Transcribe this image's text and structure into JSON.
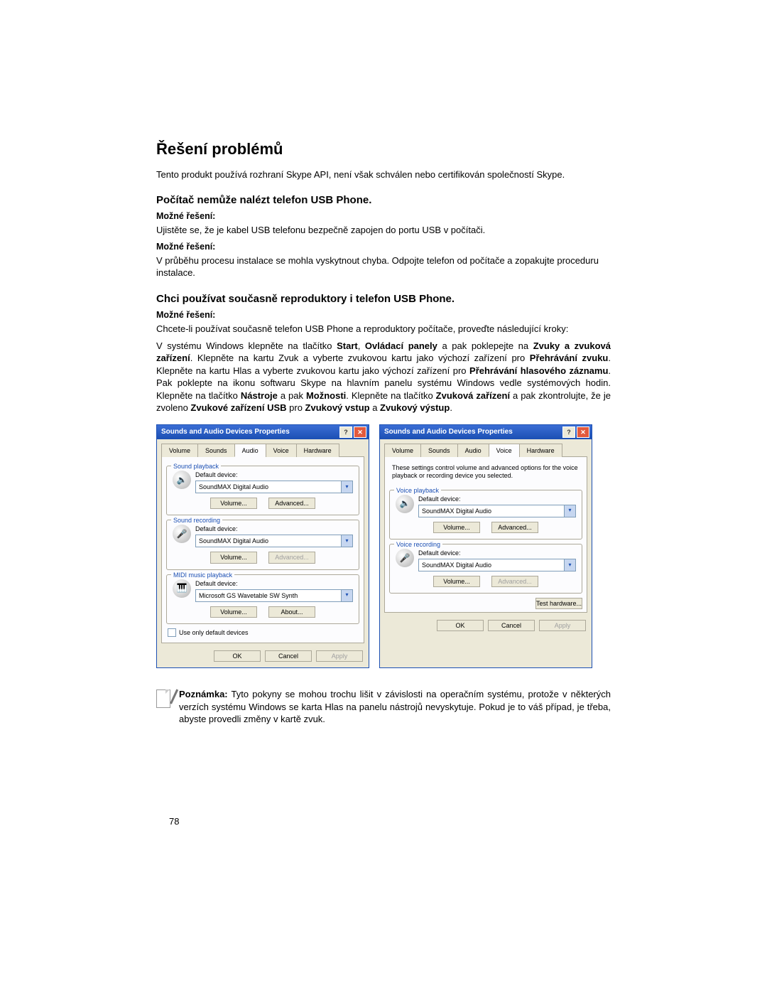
{
  "heading": "Řešení problémů",
  "intro": "Tento produkt používá rozhraní Skype API, není však schválen nebo certifikován společností Skype.",
  "section1": {
    "title": "Počítač nemůže nalézt telefon USB Phone.",
    "label1": "Možné řešení:",
    "text1": "Ujistěte se, že je kabel USB telefonu bezpečně zapojen do portu USB v počítači.",
    "label2": "Možné řešení:",
    "text2": "V průběhu procesu instalace se mohla vyskytnout chyba. Odpojte telefon od počítače a zopakujte proceduru instalace."
  },
  "section2": {
    "title": "Chci používat současně reproduktory i telefon USB Phone.",
    "label": "Možné řešení:",
    "text_a": "Chcete-li používat současně telefon USB Phone a reproduktory počítače, proveďte následující kroky:",
    "text_b1": "V systému Windows klepněte na tlačítko ",
    "b_start": "Start",
    "comma1": ", ",
    "b_panels": "Ovládací panely",
    "mid1": " a pak poklepejte na ",
    "b_sounds": "Zvuky a zvuková zařízení",
    "mid2": ". Klepněte na kartu Zvuk a vyberte zvukovou kartu jako výchozí zařízení pro ",
    "b_play": "Přehrávání zvuku",
    "mid3": ". Klepněte na kartu Hlas a vyberte zvukovou kartu jako výchozí zařízení pro ",
    "b_voice": "Přehrávání hlasového záznamu",
    "mid4": ". Pak poklepte na ikonu softwaru Skype na hlavním panelu systému Windows vedle systémových hodin. Klepněte na tlačítko ",
    "b_tools": "Nástroje",
    "mid5": " a pak ",
    "b_options": "Možnosti",
    "mid6": ". Klepněte na tlačítko ",
    "b_audiodev": "Zvuková zařízení",
    "mid7": " a pak zkontrolujte, že je zvoleno ",
    "b_usbdev": "Zvukové zařízení USB",
    "mid8": " pro ",
    "b_input": "Zvukový vstup",
    "mid9": " a ",
    "b_output": "Zvukový výstup",
    "end": "."
  },
  "dialog": {
    "title": "Sounds and Audio Devices Properties",
    "help": "?",
    "close": "✕",
    "tabs": [
      "Volume",
      "Sounds",
      "Audio",
      "Voice",
      "Hardware"
    ],
    "left": {
      "active_tab": "Audio",
      "fs1": {
        "legend": "Sound playback",
        "label": "Default device:",
        "value": "SoundMAX Digital Audio",
        "btn1": "Volume...",
        "btn2": "Advanced..."
      },
      "fs2": {
        "legend": "Sound recording",
        "label": "Default device:",
        "value": "SoundMAX Digital Audio",
        "btn1": "Volume...",
        "btn2": "Advanced..."
      },
      "fs3": {
        "legend": "MIDI music playback",
        "label": "Default device:",
        "value": "Microsoft GS Wavetable SW Synth",
        "btn1": "Volume...",
        "btn2": "About..."
      },
      "checkbox": "Use only default devices"
    },
    "right": {
      "active_tab": "Voice",
      "desc": "These settings control volume and advanced options for the voice playback or recording device you selected.",
      "fs1": {
        "legend": "Voice playback",
        "label": "Default device:",
        "value": "SoundMAX Digital Audio",
        "btn1": "Volume...",
        "btn2": "Advanced..."
      },
      "fs2": {
        "legend": "Voice recording",
        "label": "Default device:",
        "value": "SoundMAX Digital Audio",
        "btn1": "Volume...",
        "btn2": "Advanced..."
      },
      "testbtn": "Test hardware..."
    },
    "bottom": {
      "ok": "OK",
      "cancel": "Cancel",
      "apply": "Apply"
    }
  },
  "note": {
    "prefix": "Poznámka:",
    "text": " Tyto pokyny se mohou trochu lišit v závislosti na operačním systému, protože v některých verzích systému Windows se karta Hlas na panelu nástrojů nevyskytuje. Pokud je to váš případ, je třeba, abyste provedli změny v kartě zvuk."
  },
  "pagenum": "78",
  "glyph": {
    "speaker": "🔈",
    "mic": "🎤",
    "midi": "🎹"
  }
}
